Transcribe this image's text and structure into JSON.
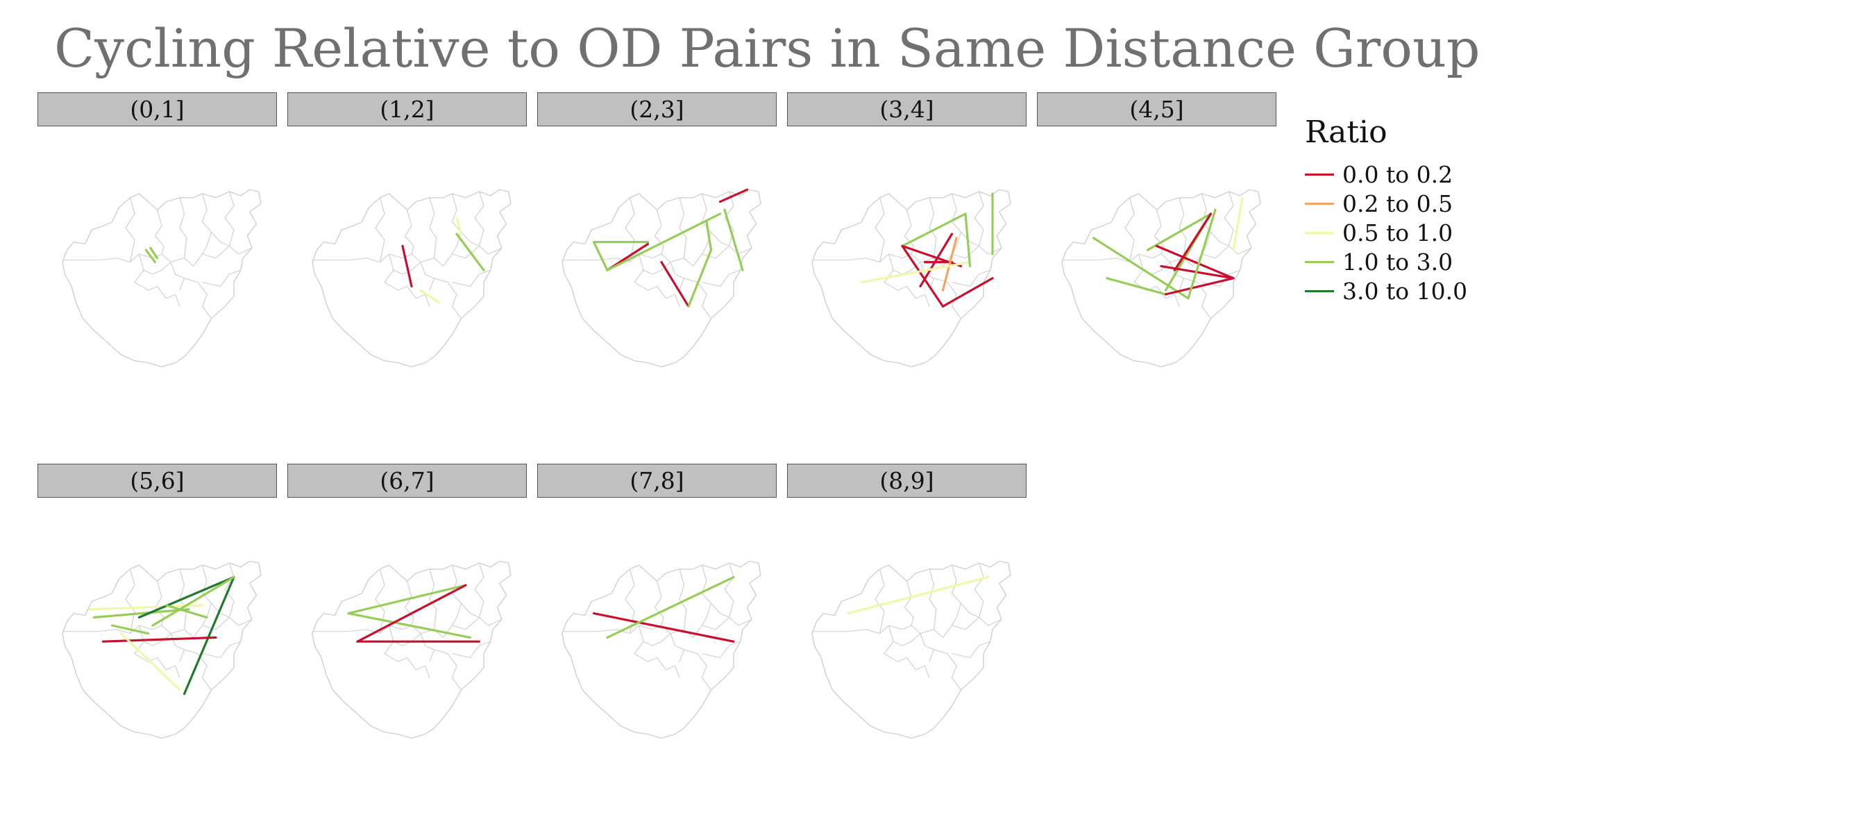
{
  "title": "Cycling Relative to OD Pairs in Same Distance Group",
  "legend": {
    "title": "Ratio",
    "items": [
      {
        "label": "0.0 to 0.2",
        "color": "#c8102e"
      },
      {
        "label": "0.2 to 0.5",
        "color": "#f4a460"
      },
      {
        "label": "0.5 to 1.0",
        "color": "#f2f7a8"
      },
      {
        "label": "1.0 to 3.0",
        "color": "#98cc58"
      },
      {
        "label": "3.0 to 10.0",
        "color": "#207a2e"
      }
    ]
  },
  "panels": [
    {
      "label": "(0,1]",
      "flows": [
        {
          "from": [
            45,
            38
          ],
          "to": [
            49,
            44
          ],
          "ratio": "1.0 to 3.0"
        },
        {
          "from": [
            47,
            37
          ],
          "to": [
            50,
            42
          ],
          "ratio": "1.0 to 3.0"
        }
      ]
    },
    {
      "label": "(1,2]",
      "flows": [
        {
          "from": [
            48,
            36
          ],
          "to": [
            52,
            56
          ],
          "ratio": "0.0 to 0.2"
        },
        {
          "from": [
            72,
            30
          ],
          "to": [
            84,
            48
          ],
          "ratio": "1.0 to 3.0"
        },
        {
          "from": [
            56,
            58
          ],
          "to": [
            64,
            64
          ],
          "ratio": "0.5 to 1.0"
        },
        {
          "from": [
            72,
            22
          ],
          "to": [
            74,
            30
          ],
          "ratio": "0.5 to 1.0"
        }
      ]
    },
    {
      "label": "(2,3]",
      "flows": [
        {
          "from": [
            22,
            34
          ],
          "to": [
            46,
            34
          ],
          "ratio": "1.0 to 3.0"
        },
        {
          "from": [
            28,
            48
          ],
          "to": [
            46,
            35
          ],
          "ratio": "0.0 to 0.2"
        },
        {
          "from": [
            22,
            34
          ],
          "to": [
            28,
            48
          ],
          "ratio": "1.0 to 3.0"
        },
        {
          "from": [
            28,
            48
          ],
          "to": [
            78,
            20
          ],
          "ratio": "1.0 to 3.0"
        },
        {
          "from": [
            52,
            44
          ],
          "to": [
            64,
            66
          ],
          "ratio": "0.0 to 0.2"
        },
        {
          "from": [
            64,
            66
          ],
          "to": [
            74,
            38
          ],
          "ratio": "1.0 to 3.0"
        },
        {
          "from": [
            74,
            38
          ],
          "to": [
            72,
            24
          ],
          "ratio": "1.0 to 3.0"
        },
        {
          "from": [
            80,
            18
          ],
          "to": [
            88,
            48
          ],
          "ratio": "1.0 to 3.0"
        },
        {
          "from": [
            78,
            14
          ],
          "to": [
            90,
            8
          ],
          "ratio": "0.0 to 0.2"
        }
      ]
    },
    {
      "label": "(3,4]",
      "flows": [
        {
          "from": [
            48,
            36
          ],
          "to": [
            76,
            20
          ],
          "ratio": "1.0 to 3.0"
        },
        {
          "from": [
            48,
            36
          ],
          "to": [
            74,
            46
          ],
          "ratio": "0.0 to 0.2"
        },
        {
          "from": [
            48,
            36
          ],
          "to": [
            66,
            66
          ],
          "ratio": "0.0 to 0.2"
        },
        {
          "from": [
            66,
            66
          ],
          "to": [
            88,
            52
          ],
          "ratio": "0.0 to 0.2"
        },
        {
          "from": [
            56,
            56
          ],
          "to": [
            70,
            30
          ],
          "ratio": "0.0 to 0.2"
        },
        {
          "from": [
            58,
            44
          ],
          "to": [
            70,
            44
          ],
          "ratio": "0.0 to 0.2"
        },
        {
          "from": [
            66,
            58
          ],
          "to": [
            72,
            32
          ],
          "ratio": "0.2 to 0.5"
        },
        {
          "from": [
            30,
            54
          ],
          "to": [
            78,
            44
          ],
          "ratio": "0.5 to 1.0"
        },
        {
          "from": [
            76,
            20
          ],
          "to": [
            78,
            46
          ],
          "ratio": "1.0 to 3.0"
        },
        {
          "from": [
            88,
            10
          ],
          "to": [
            88,
            40
          ],
          "ratio": "1.0 to 3.0"
        }
      ]
    },
    {
      "label": "(4,5]",
      "flows": [
        {
          "from": [
            22,
            32
          ],
          "to": [
            64,
            62
          ],
          "ratio": "1.0 to 3.0"
        },
        {
          "from": [
            28,
            52
          ],
          "to": [
            54,
            60
          ],
          "ratio": "1.0 to 3.0"
        },
        {
          "from": [
            46,
            38
          ],
          "to": [
            74,
            20
          ],
          "ratio": "1.0 to 3.0"
        },
        {
          "from": [
            74,
            20
          ],
          "to": [
            54,
            58
          ],
          "ratio": "1.0 to 3.0"
        },
        {
          "from": [
            50,
            36
          ],
          "to": [
            84,
            52
          ],
          "ratio": "0.0 to 0.2"
        },
        {
          "from": [
            52,
            46
          ],
          "to": [
            84,
            52
          ],
          "ratio": "0.0 to 0.2"
        },
        {
          "from": [
            54,
            60
          ],
          "to": [
            84,
            52
          ],
          "ratio": "0.0 to 0.2"
        },
        {
          "from": [
            58,
            48
          ],
          "to": [
            74,
            20
          ],
          "ratio": "0.0 to 0.2"
        },
        {
          "from": [
            64,
            62
          ],
          "to": [
            76,
            18
          ],
          "ratio": "1.0 to 3.0"
        },
        {
          "from": [
            84,
            38
          ],
          "to": [
            88,
            12
          ],
          "ratio": "0.5 to 1.0"
        }
      ]
    },
    {
      "label": "(5,6]",
      "flows": [
        {
          "from": [
            20,
            32
          ],
          "to": [
            70,
            30
          ],
          "ratio": "0.5 to 1.0"
        },
        {
          "from": [
            22,
            36
          ],
          "to": [
            64,
            32
          ],
          "ratio": "1.0 to 3.0"
        },
        {
          "from": [
            42,
            36
          ],
          "to": [
            84,
            16
          ],
          "ratio": "3.0 to 10.0"
        },
        {
          "from": [
            84,
            16
          ],
          "to": [
            62,
            74
          ],
          "ratio": "3.0 to 10.0"
        },
        {
          "from": [
            26,
            48
          ],
          "to": [
            76,
            46
          ],
          "ratio": "0.0 to 0.2"
        },
        {
          "from": [
            34,
            44
          ],
          "to": [
            60,
            72
          ],
          "ratio": "0.5 to 1.0"
        },
        {
          "from": [
            48,
            40
          ],
          "to": [
            84,
            16
          ],
          "ratio": "1.0 to 3.0"
        },
        {
          "from": [
            54,
            30
          ],
          "to": [
            72,
            36
          ],
          "ratio": "1.0 to 3.0"
        },
        {
          "from": [
            30,
            40
          ],
          "to": [
            46,
            44
          ],
          "ratio": "1.0 to 3.0"
        }
      ]
    },
    {
      "label": "(6,7]",
      "flows": [
        {
          "from": [
            24,
            34
          ],
          "to": [
            76,
            20
          ],
          "ratio": "1.0 to 3.0"
        },
        {
          "from": [
            24,
            34
          ],
          "to": [
            78,
            46
          ],
          "ratio": "1.0 to 3.0"
        },
        {
          "from": [
            28,
            48
          ],
          "to": [
            76,
            20
          ],
          "ratio": "0.0 to 0.2"
        },
        {
          "from": [
            28,
            48
          ],
          "to": [
            82,
            48
          ],
          "ratio": "0.0 to 0.2"
        }
      ]
    },
    {
      "label": "(7,8]",
      "flows": [
        {
          "from": [
            22,
            34
          ],
          "to": [
            84,
            48
          ],
          "ratio": "0.0 to 0.2"
        },
        {
          "from": [
            28,
            46
          ],
          "to": [
            84,
            16
          ],
          "ratio": "1.0 to 3.0"
        }
      ]
    },
    {
      "label": "(8,9]",
      "flows": [
        {
          "from": [
            24,
            34
          ],
          "to": [
            86,
            16
          ],
          "ratio": "0.5 to 1.0"
        }
      ]
    }
  ]
}
